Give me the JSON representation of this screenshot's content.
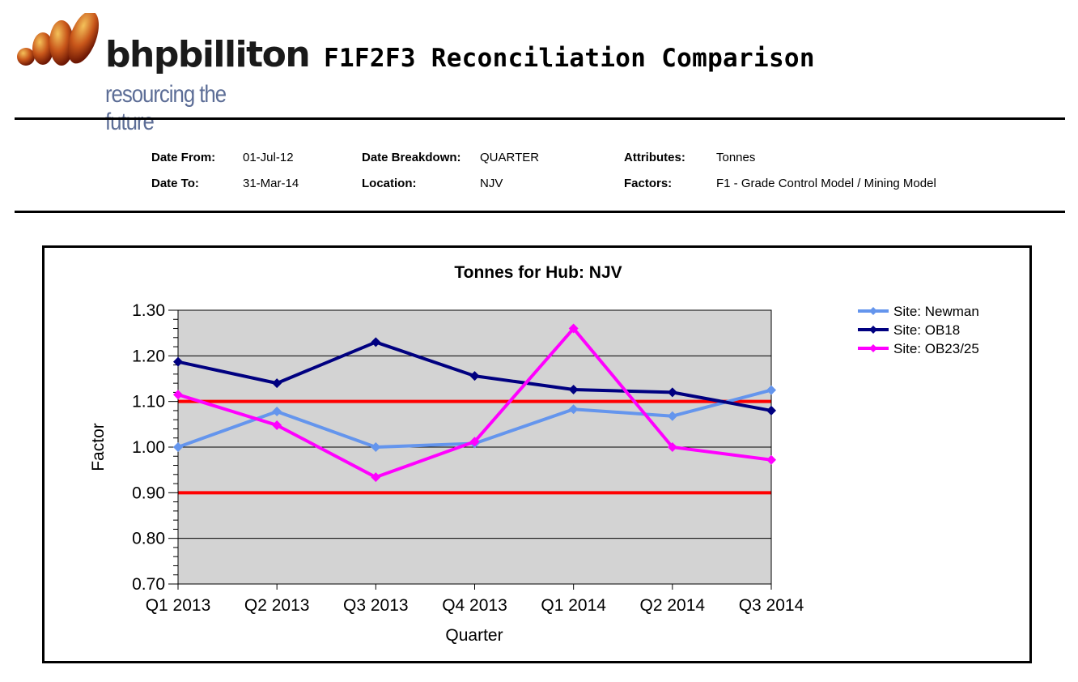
{
  "header": {
    "logo_text": "bhpbilliton",
    "logo_tagline": "resourcing the future",
    "report_title": "F1F2F3 Reconciliation Comparison"
  },
  "params": {
    "date_from_label": "Date From:",
    "date_from": "01-Jul-12",
    "date_to_label": "Date To:",
    "date_to": "31-Mar-14",
    "breakdown_label": "Date Breakdown:",
    "breakdown": "QUARTER",
    "location_label": "Location:",
    "location": "NJV",
    "attributes_label": "Attributes:",
    "attributes": "Tonnes",
    "factors_label": "Factors:",
    "factors": "F1 - Grade Control Model / Mining Model"
  },
  "colors": {
    "plot_bg": "#d3d3d3",
    "limit_line": "#ff0000",
    "logo_grad_light": "#e8a23a",
    "logo_grad_dark": "#7a1e05"
  },
  "chart_data": {
    "type": "line",
    "title": "Tonnes for Hub: NJV",
    "xlabel": "Quarter",
    "ylabel": "Factor",
    "categories": [
      "Q1 2013",
      "Q2 2013",
      "Q3 2013",
      "Q4 2013",
      "Q1 2014",
      "Q2 2014",
      "Q3 2014"
    ],
    "ylim": [
      0.7,
      1.3
    ],
    "yticks": [
      "0.70",
      "0.80",
      "0.90",
      "1.00",
      "1.10",
      "1.20",
      "1.30"
    ],
    "grid": true,
    "legend_position": "right",
    "limits": [
      0.9,
      1.1
    ],
    "series": [
      {
        "name": "Site: Newman",
        "color": "#6495ed",
        "values": [
          1.0,
          1.078,
          1.0,
          1.008,
          1.083,
          1.068,
          1.125
        ]
      },
      {
        "name": "Site: OB18",
        "color": "#000080",
        "values": [
          1.187,
          1.14,
          1.23,
          1.156,
          1.126,
          1.12,
          1.08
        ]
      },
      {
        "name": "Site: OB23/25",
        "color": "#ff00ff",
        "values": [
          1.115,
          1.048,
          0.934,
          1.012,
          1.26,
          1.0,
          0.972
        ]
      }
    ]
  }
}
